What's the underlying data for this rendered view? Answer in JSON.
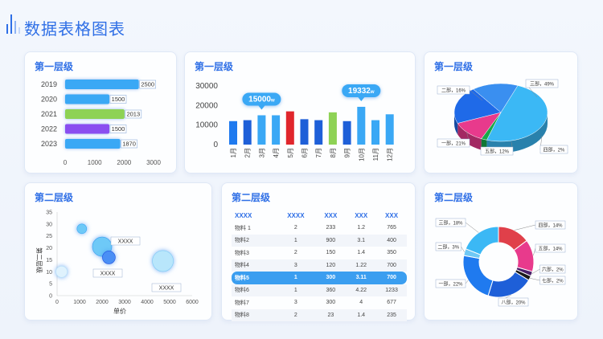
{
  "page": {
    "title": "数据表格图表"
  },
  "cards": {
    "hbar_title": "第一层级",
    "vbar_title": "第一层级",
    "pie3d_title": "第一层级",
    "bubble_title": "第二层级",
    "table_title": "第二层级",
    "donut_title": "第二层级"
  },
  "chart_data": [
    {
      "type": "bar",
      "orientation": "horizontal",
      "categories": [
        "2019",
        "2020",
        "2021",
        "2022",
        "2023"
      ],
      "values": [
        2500,
        1500,
        2013,
        1500,
        1870
      ],
      "value_labels": [
        "2500",
        "1500",
        "2013",
        "1500",
        "1870"
      ],
      "bar_colors": [
        "#3aa8f5",
        "#3aa8f5",
        "#8ed255",
        "#8a4ef0",
        "#3aa8f5"
      ],
      "xticks": [
        "0",
        "1000",
        "2000",
        "3000"
      ],
      "xlim": [
        0,
        3000
      ]
    },
    {
      "type": "bar",
      "categories": [
        "1月",
        "2月",
        "3月",
        "4月",
        "5月",
        "6月",
        "7月",
        "8月",
        "9月",
        "10月",
        "11月",
        "12月"
      ],
      "values": [
        12000,
        12500,
        15000,
        15000,
        17000,
        13000,
        12500,
        16500,
        12000,
        19332,
        12500,
        15500
      ],
      "bar_colors": [
        "#1f7aef",
        "#1e5fd8",
        "#3aa8f5",
        "#3aa8f5",
        "#e0262c",
        "#1e5fd8",
        "#1e5fd8",
        "#8ed255",
        "#1e5fd8",
        "#3aa8f5",
        "#3aa8f5",
        "#3aa8f5"
      ],
      "yticks": [
        "0",
        "10000",
        "20000",
        "30000"
      ],
      "ylim": [
        0,
        30000
      ],
      "callouts": [
        {
          "category": "3月",
          "text": "15000",
          "unit": "w"
        },
        {
          "category": "10月",
          "text": "19332",
          "unit": "w"
        }
      ]
    },
    {
      "type": "pie",
      "style": "3d",
      "labels": [
        "三部，49%",
        "四部，2%",
        "五部，12%",
        "一部，21%",
        "二部，16%"
      ],
      "values": [
        49,
        2,
        12,
        21,
        16
      ],
      "colors": [
        "#3bb8f5",
        "#18a84a",
        "#e83a8c",
        "#1f6ae8",
        "#3a8ff0"
      ]
    },
    {
      "type": "scatter",
      "style": "bubble",
      "xlabel": "单价",
      "ylabel": "第二层级",
      "xticks": [
        "0",
        "1000",
        "2000",
        "3000",
        "4000",
        "5000",
        "6000"
      ],
      "yticks": [
        "0",
        "5",
        "10",
        "15",
        "20",
        "25",
        "30",
        "35"
      ],
      "xlim": [
        0,
        6000
      ],
      "ylim": [
        0,
        35
      ],
      "points": [
        {
          "x": 1100,
          "y": 28,
          "size": 6
        },
        {
          "x": 2000,
          "y": 20.5,
          "size": 12
        },
        {
          "x": 2300,
          "y": 16,
          "size": 8
        },
        {
          "x": 4700,
          "y": 14.5,
          "size": 13
        },
        {
          "x": 200,
          "y": 10,
          "size": 7
        }
      ],
      "annotations": [
        "XXXX",
        "XXXX",
        "XXXX"
      ]
    },
    {
      "type": "table",
      "headers": [
        "XXXX",
        "XXXX",
        "XXX",
        "XXX",
        "XXX"
      ],
      "rows": [
        [
          "物料 1",
          "2",
          "233",
          "1.2",
          "765"
        ],
        [
          "物料2",
          "1",
          "900",
          "3.1",
          "400"
        ],
        [
          "物料3",
          "2",
          "150",
          "1.4",
          "350"
        ],
        [
          "物料4",
          "3",
          "120",
          "1.22",
          "700"
        ],
        [
          "物料5",
          "1",
          "300",
          "3.11",
          "700"
        ],
        [
          "物料6",
          "1",
          "360",
          "4.22",
          "1233"
        ],
        [
          "物料7",
          "3",
          "300",
          "4",
          "677"
        ],
        [
          "物料8",
          "2",
          "23",
          "1.4",
          "235"
        ]
      ],
      "highlight_row": 4
    },
    {
      "type": "pie",
      "style": "donut",
      "labels": [
        "四部，14%",
        "五部，14%",
        "六部，2%",
        "七部，2%",
        "八部，20%",
        "一部，22%",
        "二部，3%",
        "三部，18%"
      ],
      "values": [
        14,
        14,
        2,
        2,
        20,
        22,
        3,
        18
      ],
      "colors": [
        "#e0404a",
        "#e83a8c",
        "#4a1f6a",
        "#1a1a1a",
        "#1e5fd8",
        "#1f7aef",
        "#6fc8f5",
        "#3bb8f5"
      ]
    }
  ]
}
